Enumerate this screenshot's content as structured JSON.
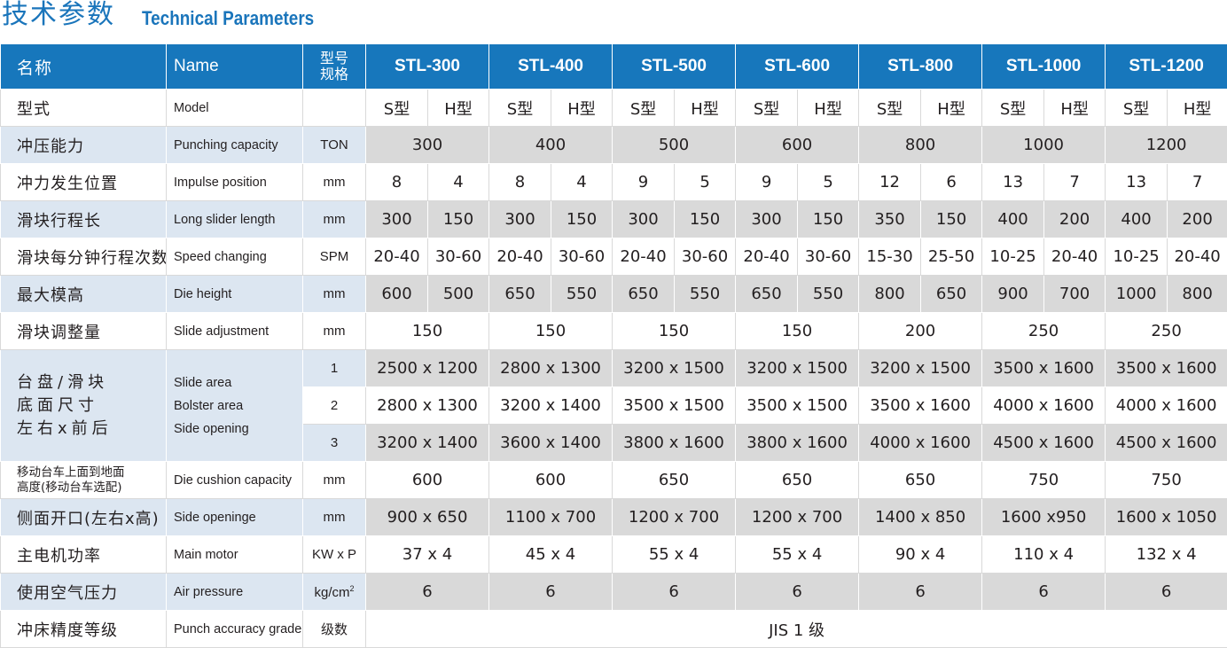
{
  "title": {
    "cn": "技术参数",
    "en": "Technical Parameters"
  },
  "header": {
    "cn": "名称",
    "en": "Name",
    "unit": "型号\n规格",
    "models": [
      "STL-300",
      "STL-400",
      "STL-500",
      "STL-600",
      "STL-800",
      "STL-1000",
      "STL-1200"
    ]
  },
  "rows": {
    "model": {
      "cn": "型式",
      "en": "Model",
      "unit": "",
      "values": [
        "S型",
        "H型",
        "S型",
        "H型",
        "S型",
        "H型",
        "S型",
        "H型",
        "S型",
        "H型",
        "S型",
        "H型",
        "S型",
        "H型"
      ]
    },
    "punching": {
      "cn": "冲压能力",
      "en": "Punching capacity",
      "unit": "TON",
      "values": [
        "300",
        "400",
        "500",
        "600",
        "800",
        "1000",
        "1200"
      ]
    },
    "impulse": {
      "cn": "冲力发生位置",
      "en": "Impulse position",
      "unit": "mm",
      "values": [
        "8",
        "4",
        "8",
        "4",
        "9",
        "5",
        "9",
        "5",
        "12",
        "6",
        "13",
        "7",
        "13",
        "7"
      ]
    },
    "slider_length": {
      "cn": "滑块行程长",
      "en": "Long slider length",
      "unit": "mm",
      "values": [
        "300",
        "150",
        "300",
        "150",
        "300",
        "150",
        "300",
        "150",
        "350",
        "150",
        "400",
        "200",
        "400",
        "200"
      ]
    },
    "speed": {
      "cn": "滑块每分钟行程次数",
      "en": "Speed changing",
      "unit": "SPM",
      "values": [
        "20-40",
        "30-60",
        "20-40",
        "30-60",
        "20-40",
        "30-60",
        "20-40",
        "30-60",
        "15-30",
        "25-50",
        "10-25",
        "20-40",
        "10-25",
        "20-40"
      ]
    },
    "die_height": {
      "cn": "最大模高",
      "en": "Die height",
      "unit": "mm",
      "values": [
        "600",
        "500",
        "650",
        "550",
        "650",
        "550",
        "650",
        "550",
        "800",
        "650",
        "900",
        "700",
        "1000",
        "800"
      ]
    },
    "slide_adj": {
      "cn": "滑块调整量",
      "en": "Slide adjustment",
      "unit": "mm",
      "values": [
        "150",
        "150",
        "150",
        "150",
        "200",
        "250",
        "250"
      ]
    },
    "area": {
      "cn": "台盘/滑块\n底面尺寸\n左右x前后",
      "en": "Slide area\nBolster area\nSide opening",
      "sub": [
        {
          "unit": "1",
          "values": [
            "2500 x 1200",
            "2800 x 1300",
            "3200 x 1500",
            "3200 x 1500",
            "3200 x 1500",
            "3500 x 1600",
            "3500 x 1600"
          ]
        },
        {
          "unit": "2",
          "values": [
            "2800 x 1300",
            "3200 x 1400",
            "3500 x 1500",
            "3500 x 1500",
            "3500 x 1600",
            "4000 x 1600",
            "4000 x 1600"
          ]
        },
        {
          "unit": "3",
          "values": [
            "3200 x 1400",
            "3600 x 1400",
            "3800 x 1600",
            "3800 x 1600",
            "4000 x 1600",
            "4500 x 1600",
            "4500 x 1600"
          ]
        }
      ]
    },
    "cushion": {
      "cn": "移动台车上面到地面\n高度(移动台车选配)",
      "en": "Die cushion capacity",
      "unit": "mm",
      "values": [
        "600",
        "600",
        "650",
        "650",
        "650",
        "750",
        "750"
      ]
    },
    "side_open": {
      "cn": "侧面开口(左右x高)",
      "en": "Side openinge",
      "unit": "mm",
      "values": [
        "900 x 650",
        "1100 x 700",
        "1200 x 700",
        "1200 x 700",
        "1400 x 850",
        "1600 x950",
        "1600 x 1050"
      ]
    },
    "motor": {
      "cn": "主电机功率",
      "en": "Main motor",
      "unit": "KW x P",
      "values": [
        "37 x 4",
        "45 x 4",
        "55 x 4",
        "55 x 4",
        "90 x 4",
        "110 x 4",
        "132 x 4"
      ]
    },
    "air": {
      "cn": "使用空气压力",
      "en": "Air pressure",
      "unit": "kg/cm",
      "unit_sup": "2",
      "values": [
        "6",
        "6",
        "6",
        "6",
        "6",
        "6",
        "6"
      ]
    },
    "accuracy": {
      "cn": "冲床精度等级",
      "en": "Punch accuracy grade",
      "unit": "级数",
      "value": "JIS 1 级"
    }
  }
}
